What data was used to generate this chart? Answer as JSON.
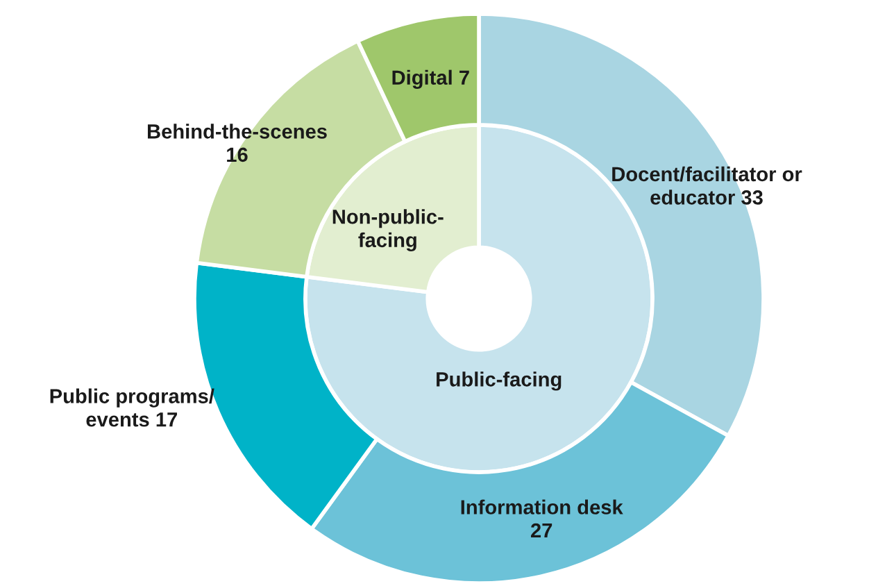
{
  "chart_data": {
    "type": "donut",
    "series": [
      {
        "values": [
          77,
          23
        ],
        "colors": [
          "#c6e3ed",
          "#e2eed0"
        ],
        "value_labels": [
          "Public-facing",
          "Non-public-\nfacing"
        ]
      },
      {
        "values": [
          33,
          27,
          17,
          16,
          7
        ],
        "colors": [
          "#a9d5e2",
          "#6cc2d8",
          "#00b3c8",
          "#c6dda3",
          "#9fc76b"
        ],
        "value_labels": [
          "Docent/facilitator or\neducator 33",
          "Information desk\n27",
          "Public programs/\nevents 17",
          "Behind-the-scenes\n16",
          "Digital 7"
        ]
      }
    ]
  }
}
